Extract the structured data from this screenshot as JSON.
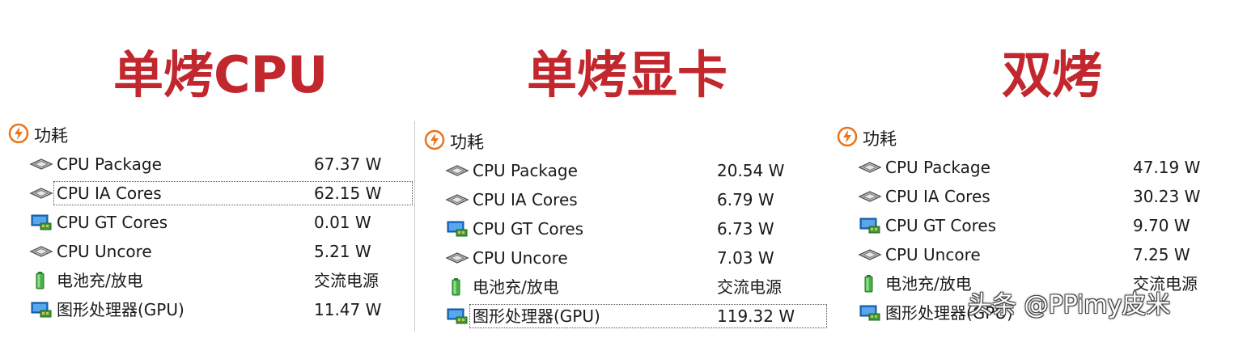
{
  "headings": [
    "单烤CPU",
    "单烤显卡",
    "双烤"
  ],
  "panels": [
    {
      "group_label": "功耗",
      "rows": [
        {
          "name": "CPU Package",
          "value": "67.37 W",
          "icon": "chip-icon"
        },
        {
          "name": "CPU IA Cores",
          "value": "62.15 W",
          "icon": "chip-icon"
        },
        {
          "name": "CPU GT Cores",
          "value": "0.01 W",
          "icon": "gpu-monitor-icon"
        },
        {
          "name": "CPU Uncore",
          "value": "5.21 W",
          "icon": "chip-icon"
        },
        {
          "name": "电池充/放电",
          "value": "交流电源",
          "icon": "battery-icon"
        },
        {
          "name": "图形处理器(GPU)",
          "value": "11.47 W",
          "icon": "gpu-monitor-icon"
        }
      ]
    },
    {
      "group_label": "功耗",
      "rows": [
        {
          "name": "CPU Package",
          "value": "20.54 W",
          "icon": "chip-icon"
        },
        {
          "name": "CPU IA Cores",
          "value": "6.79 W",
          "icon": "chip-icon"
        },
        {
          "name": "CPU GT Cores",
          "value": "6.73 W",
          "icon": "gpu-monitor-icon"
        },
        {
          "name": "CPU Uncore",
          "value": "7.03 W",
          "icon": "chip-icon"
        },
        {
          "name": "电池充/放电",
          "value": "交流电源",
          "icon": "battery-icon"
        },
        {
          "name": "图形处理器(GPU)",
          "value": "119.32 W",
          "icon": "gpu-monitor-icon"
        }
      ]
    },
    {
      "group_label": "功耗",
      "rows": [
        {
          "name": "CPU Package",
          "value": "47.19 W",
          "icon": "chip-icon"
        },
        {
          "name": "CPU IA Cores",
          "value": "30.23 W",
          "icon": "chip-icon"
        },
        {
          "name": "CPU GT Cores",
          "value": "9.70 W",
          "icon": "gpu-monitor-icon"
        },
        {
          "name": "CPU Uncore",
          "value": "7.25 W",
          "icon": "chip-icon"
        },
        {
          "name": "电池充/放电",
          "value": "交流电源",
          "icon": "battery-icon"
        },
        {
          "name": "图形处理器(GPU)",
          "value": "",
          "icon": "gpu-monitor-icon"
        }
      ]
    }
  ],
  "watermark": "头条 @PPimy皮米",
  "colors": {
    "heading": "#c1272d",
    "power_icon": "#e8741c",
    "battery": "#3ca33c",
    "gpu_icon": "#1e73c8"
  }
}
